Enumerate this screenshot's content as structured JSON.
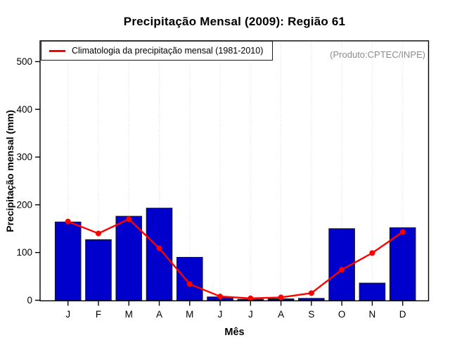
{
  "chart_data": {
    "type": "bar",
    "title": "Precipitação Mensal (2009): Região 61",
    "xlabel": "Mês",
    "ylabel": "Precipitação mensal (mm)",
    "annotation": "(Produto:CPTEC/INPE)",
    "categories": [
      "J",
      "F",
      "M",
      "A",
      "M",
      "J",
      "J",
      "A",
      "S",
      "O",
      "N",
      "D"
    ],
    "series": [
      {
        "name": "Precipitação mensal (2009)",
        "type": "bar",
        "color": "#0000cd",
        "values": [
          164,
          127,
          176,
          193,
          90,
          7,
          2,
          3,
          4,
          150,
          36,
          152
        ]
      },
      {
        "name": "Climatologia da precipitação mensal (1981-2010)",
        "type": "line",
        "color": "#ff0000",
        "values": [
          165,
          140,
          170,
          109,
          34,
          8,
          4,
          6,
          15,
          64,
          99,
          143
        ]
      }
    ],
    "ylim": [
      0,
      500
    ],
    "yticks": [
      0,
      100,
      200,
      300,
      400,
      500
    ],
    "grid": "vertical-dotted-per-month",
    "legend_position": "top-left",
    "colors": {
      "bar_fill": "#0000cd",
      "bar_border": "#1a1a1a",
      "line": "#ff0000",
      "gridline": "#d6d6d6",
      "credit_text": "#8c8c8c"
    }
  }
}
